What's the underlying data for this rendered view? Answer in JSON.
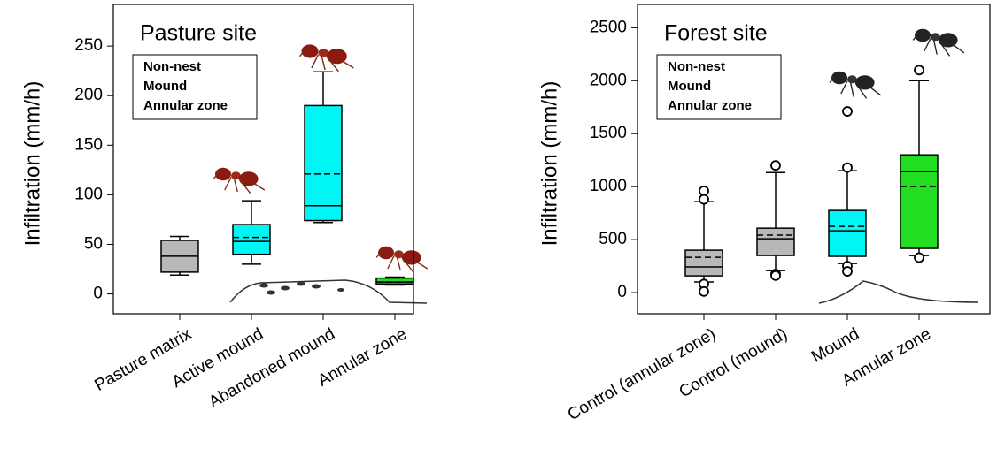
{
  "chart_data": [
    {
      "type": "box",
      "title": "Pasture site",
      "y_label": "Infiltration (mm/h)",
      "categories": [
        "Pasture matrix",
        "Active mound",
        "Abandoned mound",
        "Annular zone"
      ],
      "colors": [
        "#b8b8b8",
        "#00f5f5",
        "#00f5f5",
        "#22dd22"
      ],
      "whisker_low": [
        19,
        30,
        72,
        9
      ],
      "q1": [
        22,
        40,
        74,
        10
      ],
      "median": [
        38,
        53,
        89,
        12
      ],
      "q3": [
        54,
        70,
        190,
        16
      ],
      "whisker_high": [
        58,
        94,
        224,
        17
      ],
      "mean": [
        null,
        57,
        121,
        12
      ],
      "outliers": [
        [],
        [],
        [],
        []
      ],
      "legend": [
        {
          "name": "Non-nest",
          "color": "#a6a6a6"
        },
        {
          "name": "Mound",
          "color": "#33dddd"
        },
        {
          "name": "Annular zone",
          "color": "#22cc22"
        }
      ],
      "ylim": [
        -20,
        292
      ],
      "yticks": [
        0,
        50,
        100,
        150,
        200,
        250
      ]
    },
    {
      "type": "box",
      "title": "Forest site",
      "y_label": "Infiltration (mm/h)",
      "categories": [
        "Control (annular zone)",
        "Control (mound)",
        "Mound",
        "Annular zone"
      ],
      "colors": [
        "#b8b8b8",
        "#b8b8b8",
        "#00f5f5",
        "#22dd22"
      ],
      "whisker_low": [
        100,
        208,
        275,
        350
      ],
      "q1": [
        158,
        350,
        342,
        417
      ],
      "median": [
        242,
        508,
        583,
        1142
      ],
      "q3": [
        400,
        608,
        775,
        1300
      ],
      "whisker_high": [
        858,
        1133,
        1150,
        2000
      ],
      "mean": [
        333,
        542,
        625,
        1000
      ],
      "outliers": [
        [
          960,
          880,
          80,
          10
        ],
        [
          1200,
          175,
          160
        ],
        [
          1710,
          1180,
          250,
          200
        ],
        [
          2100,
          330
        ]
      ],
      "legend": [
        {
          "name": "Non-nest",
          "color": "#a6a6a6"
        },
        {
          "name": "Mound",
          "color": "#33dddd"
        },
        {
          "name": "Annular zone",
          "color": "#22cc22"
        }
      ],
      "ylim": [
        -200,
        2720
      ],
      "yticks": [
        0,
        500,
        1000,
        1500,
        2000,
        2500
      ]
    }
  ]
}
